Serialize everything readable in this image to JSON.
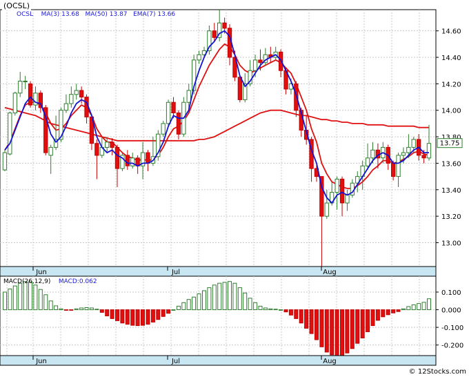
{
  "ticker_label": "(OCSL)",
  "legend": {
    "symbol": "OCSL",
    "ma3_label": "MA(3)",
    "ma3_value": "13.68",
    "ma50_label": "MA(50)",
    "ma50_value": "13.87",
    "ema7_label": "EMA(7)",
    "ema7_value": "13.66"
  },
  "macd_legend": {
    "label": "MACD(26,12,9)",
    "name": "MACD",
    "value": "0.062"
  },
  "last_price_tag": "13.75",
  "copyright": "© 12Stocks.com",
  "colors": {
    "up": "#2e7d2e",
    "down": "#e01010",
    "ma3": "#1414d0",
    "ma50": "#e01010",
    "bg_axis": "#c8e6f2"
  },
  "chart_data": [
    {
      "type": "candlestick",
      "x_month_labels": [
        "Jun",
        "Jul",
        "Aug"
      ],
      "y_ticks": [
        13.0,
        13.2,
        13.4,
        13.6,
        13.8,
        14.0,
        14.2,
        14.4,
        14.6
      ],
      "y_tick_labels": [
        "13.00",
        "13.20",
        "13.40",
        "13.60",
        "13.80",
        "14.00",
        "14.20",
        "14.40",
        "14.60"
      ],
      "ylim": [
        12.82,
        14.76
      ],
      "grid": true,
      "candles": [
        [
          13.55,
          13.68,
          13.54,
          13.7
        ],
        [
          13.67,
          13.98,
          13.66,
          13.99
        ],
        [
          13.98,
          14.13,
          13.96,
          14.14
        ],
        [
          14.13,
          14.22,
          14.1,
          14.29
        ],
        [
          14.22,
          14.22,
          14.16,
          14.26
        ],
        [
          14.2,
          14.04,
          14.02,
          14.22
        ],
        [
          14.04,
          14.13,
          14.0,
          14.18
        ],
        [
          14.13,
          14.02,
          13.98,
          14.15
        ],
        [
          14.02,
          13.68,
          13.66,
          14.04
        ],
        [
          13.66,
          13.72,
          13.52,
          13.74
        ],
        [
          13.72,
          13.78,
          13.7,
          13.96
        ],
        [
          13.78,
          14.0,
          13.76,
          14.02
        ],
        [
          14.0,
          14.05,
          13.98,
          14.12
        ],
        [
          14.05,
          14.12,
          14.02,
          14.18
        ],
        [
          14.12,
          14.15,
          14.08,
          14.2
        ],
        [
          14.15,
          14.1,
          14.05,
          14.18
        ],
        [
          14.1,
          13.95,
          13.9,
          14.12
        ],
        [
          13.95,
          13.75,
          13.7,
          13.97
        ],
        [
          13.75,
          13.66,
          13.48,
          13.78
        ],
        [
          13.66,
          13.72,
          13.64,
          13.8
        ],
        [
          13.72,
          13.76,
          13.68,
          13.8
        ],
        [
          13.76,
          13.72,
          13.66,
          13.79
        ],
        [
          13.72,
          13.56,
          13.42,
          13.74
        ],
        [
          13.56,
          13.66,
          13.54,
          13.68
        ],
        [
          13.66,
          13.58,
          13.55,
          13.7
        ],
        [
          13.58,
          13.64,
          13.56,
          13.68
        ],
        [
          13.64,
          13.58,
          13.52,
          13.66
        ],
        [
          13.58,
          13.68,
          13.48,
          13.76
        ],
        [
          13.68,
          13.6,
          13.54,
          13.7
        ],
        [
          13.6,
          13.65,
          13.58,
          13.8
        ],
        [
          13.65,
          13.82,
          13.62,
          13.85
        ],
        [
          13.82,
          13.9,
          13.8,
          13.92
        ],
        [
          13.9,
          14.06,
          13.88,
          14.08
        ],
        [
          14.06,
          13.98,
          13.94,
          14.1
        ],
        [
          13.98,
          13.82,
          13.78,
          14.0
        ],
        [
          13.82,
          14.06,
          13.8,
          14.1
        ],
        [
          14.06,
          14.15,
          14.0,
          14.2
        ],
        [
          14.15,
          14.38,
          14.12,
          14.42
        ],
        [
          14.38,
          14.42,
          14.35,
          14.45
        ],
        [
          14.42,
          14.45,
          14.4,
          14.48
        ],
        [
          14.45,
          14.6,
          14.42,
          14.64
        ],
        [
          14.6,
          14.55,
          14.52,
          14.66
        ],
        [
          14.55,
          14.66,
          14.52,
          14.76
        ],
        [
          14.66,
          14.62,
          14.58,
          14.7
        ],
        [
          14.62,
          14.4,
          14.34,
          14.65
        ],
        [
          14.4,
          14.25,
          14.22,
          14.45
        ],
        [
          14.25,
          14.08,
          14.06,
          14.26
        ],
        [
          14.08,
          14.2,
          14.06,
          14.28
        ],
        [
          14.2,
          14.3,
          14.18,
          14.38
        ],
        [
          14.3,
          14.38,
          14.25,
          14.42
        ],
        [
          14.38,
          14.36,
          14.3,
          14.46
        ],
        [
          14.36,
          14.42,
          14.34,
          14.47
        ],
        [
          14.42,
          14.4,
          14.36,
          14.48
        ],
        [
          14.4,
          14.44,
          14.38,
          14.48
        ],
        [
          14.44,
          14.3,
          14.25,
          14.46
        ],
        [
          14.3,
          14.16,
          14.12,
          14.32
        ],
        [
          14.16,
          14.2,
          14.12,
          14.24
        ],
        [
          14.2,
          14.0,
          13.95,
          14.22
        ],
        [
          14.0,
          13.85,
          13.8,
          14.02
        ],
        [
          13.85,
          13.78,
          13.74,
          13.96
        ],
        [
          13.78,
          13.56,
          13.46,
          13.8
        ],
        [
          13.56,
          13.5,
          13.46,
          13.6
        ],
        [
          13.5,
          13.2,
          12.82,
          13.5
        ],
        [
          13.2,
          13.3,
          13.18,
          13.4
        ],
        [
          13.3,
          13.38,
          13.28,
          13.46
        ],
        [
          13.38,
          13.48,
          13.25,
          13.5
        ],
        [
          13.48,
          13.3,
          13.2,
          13.5
        ],
        [
          13.3,
          13.36,
          13.24,
          13.4
        ],
        [
          13.36,
          13.45,
          13.34,
          13.48
        ],
        [
          13.45,
          13.5,
          13.38,
          13.54
        ],
        [
          13.5,
          13.58,
          13.4,
          13.62
        ],
        [
          13.58,
          13.64,
          13.55,
          13.75
        ],
        [
          13.64,
          13.7,
          13.6,
          13.76
        ],
        [
          13.7,
          13.64,
          13.56,
          13.75
        ],
        [
          13.64,
          13.72,
          13.6,
          13.76
        ],
        [
          13.72,
          13.6,
          13.55,
          13.74
        ],
        [
          13.6,
          13.5,
          13.47,
          13.62
        ],
        [
          13.5,
          13.66,
          13.42,
          13.68
        ],
        [
          13.66,
          13.68,
          13.6,
          13.72
        ],
        [
          13.68,
          13.72,
          13.64,
          13.82
        ],
        [
          13.72,
          13.78,
          13.68,
          13.8
        ],
        [
          13.78,
          13.66,
          13.62,
          13.82
        ],
        [
          13.66,
          13.64,
          13.6,
          13.7
        ],
        [
          13.64,
          13.75,
          13.62,
          13.89
        ]
      ],
      "ma3": [
        13.7,
        13.75,
        13.85,
        13.95,
        14.05,
        14.1,
        14.06,
        14.05,
        13.95,
        13.82,
        13.76,
        13.8,
        13.88,
        13.98,
        14.05,
        14.08,
        14.06,
        13.96,
        13.8,
        13.72,
        13.68,
        13.7,
        13.66,
        13.64,
        13.6,
        13.6,
        13.58,
        13.6,
        13.6,
        13.62,
        13.68,
        13.76,
        13.88,
        13.96,
        13.94,
        13.94,
        14.0,
        14.18,
        14.3,
        14.4,
        14.48,
        14.52,
        14.58,
        14.6,
        14.56,
        14.42,
        14.26,
        14.18,
        14.22,
        14.28,
        14.34,
        14.38,
        14.4,
        14.42,
        14.38,
        14.3,
        14.22,
        14.12,
        13.98,
        13.84,
        13.7,
        13.6,
        13.42,
        13.34,
        13.3,
        13.36,
        13.38,
        13.36,
        13.38,
        13.44,
        13.5,
        13.56,
        13.62,
        13.66,
        13.68,
        13.66,
        13.6,
        13.6,
        13.62,
        13.66,
        13.7,
        13.72,
        13.68,
        13.68
      ],
      "ema7": [
        13.7,
        13.76,
        13.86,
        13.96,
        14.04,
        14.06,
        14.06,
        14.04,
        13.98,
        13.9,
        13.85,
        13.86,
        13.9,
        13.96,
        14.0,
        14.04,
        14.02,
        13.96,
        13.86,
        13.8,
        13.76,
        13.76,
        13.72,
        13.68,
        13.65,
        13.64,
        13.62,
        13.63,
        13.62,
        13.63,
        13.66,
        13.72,
        13.8,
        13.86,
        13.88,
        13.92,
        13.98,
        14.08,
        14.18,
        14.26,
        14.34,
        14.4,
        14.46,
        14.5,
        14.48,
        14.42,
        14.34,
        14.3,
        14.28,
        14.3,
        14.32,
        14.34,
        14.36,
        14.38,
        14.36,
        14.32,
        14.28,
        14.2,
        14.1,
        14.0,
        13.86,
        13.76,
        13.6,
        13.52,
        13.46,
        13.44,
        13.42,
        13.41,
        13.41,
        13.43,
        13.46,
        13.5,
        13.55,
        13.58,
        13.62,
        13.62,
        13.6,
        13.61,
        13.63,
        13.65,
        13.68,
        13.69,
        13.67,
        13.66
      ],
      "ma50": [
        14.02,
        14.01,
        14.0,
        13.99,
        13.98,
        13.97,
        13.96,
        13.94,
        13.92,
        13.9,
        13.89,
        13.88,
        13.87,
        13.86,
        13.85,
        13.84,
        13.83,
        13.82,
        13.81,
        13.8,
        13.79,
        13.78,
        13.77,
        13.77,
        13.77,
        13.77,
        13.77,
        13.77,
        13.77,
        13.77,
        13.77,
        13.77,
        13.77,
        13.77,
        13.77,
        13.77,
        13.77,
        13.77,
        13.78,
        13.78,
        13.79,
        13.8,
        13.82,
        13.84,
        13.86,
        13.88,
        13.9,
        13.92,
        13.94,
        13.96,
        13.98,
        13.99,
        14.0,
        14.0,
        14.0,
        13.99,
        13.98,
        13.97,
        13.96,
        13.96,
        13.95,
        13.94,
        13.93,
        13.93,
        13.92,
        13.92,
        13.91,
        13.91,
        13.9,
        13.9,
        13.9,
        13.89,
        13.89,
        13.89,
        13.89,
        13.88,
        13.88,
        13.88,
        13.88,
        13.88,
        13.88,
        13.87,
        13.87,
        13.87
      ]
    },
    {
      "type": "bar",
      "series_name": "MACD",
      "y_ticks": [
        0.1,
        0.0,
        -0.1,
        -0.2
      ],
      "y_tick_labels": [
        "0.100",
        "0.000",
        "-0.100",
        "-0.200"
      ],
      "ylim": [
        -0.26,
        0.19
      ],
      "x_month_labels": [
        "Jun",
        "Jul",
        "Aug"
      ],
      "values": [
        0.1,
        0.118,
        0.135,
        0.15,
        0.16,
        0.158,
        0.14,
        0.115,
        0.085,
        0.05,
        0.022,
        0.005,
        -0.002,
        -0.002,
        0.005,
        0.01,
        0.012,
        0.01,
        0.003,
        -0.015,
        -0.035,
        -0.05,
        -0.062,
        -0.075,
        -0.082,
        -0.088,
        -0.09,
        -0.088,
        -0.082,
        -0.07,
        -0.055,
        -0.038,
        -0.02,
        0.0,
        0.02,
        0.04,
        0.058,
        0.072,
        0.09,
        0.108,
        0.125,
        0.14,
        0.15,
        0.155,
        0.16,
        0.15,
        0.125,
        0.095,
        0.065,
        0.04,
        0.02,
        0.01,
        0.005,
        0.003,
        0.0,
        -0.012,
        -0.03,
        -0.05,
        -0.075,
        -0.105,
        -0.135,
        -0.17,
        -0.21,
        -0.24,
        -0.255,
        -0.262,
        -0.26,
        -0.245,
        -0.22,
        -0.19,
        -0.16,
        -0.125,
        -0.09,
        -0.06,
        -0.04,
        -0.028,
        -0.018,
        -0.01,
        0.005,
        0.018,
        0.028,
        0.035,
        0.042,
        0.062
      ]
    }
  ]
}
